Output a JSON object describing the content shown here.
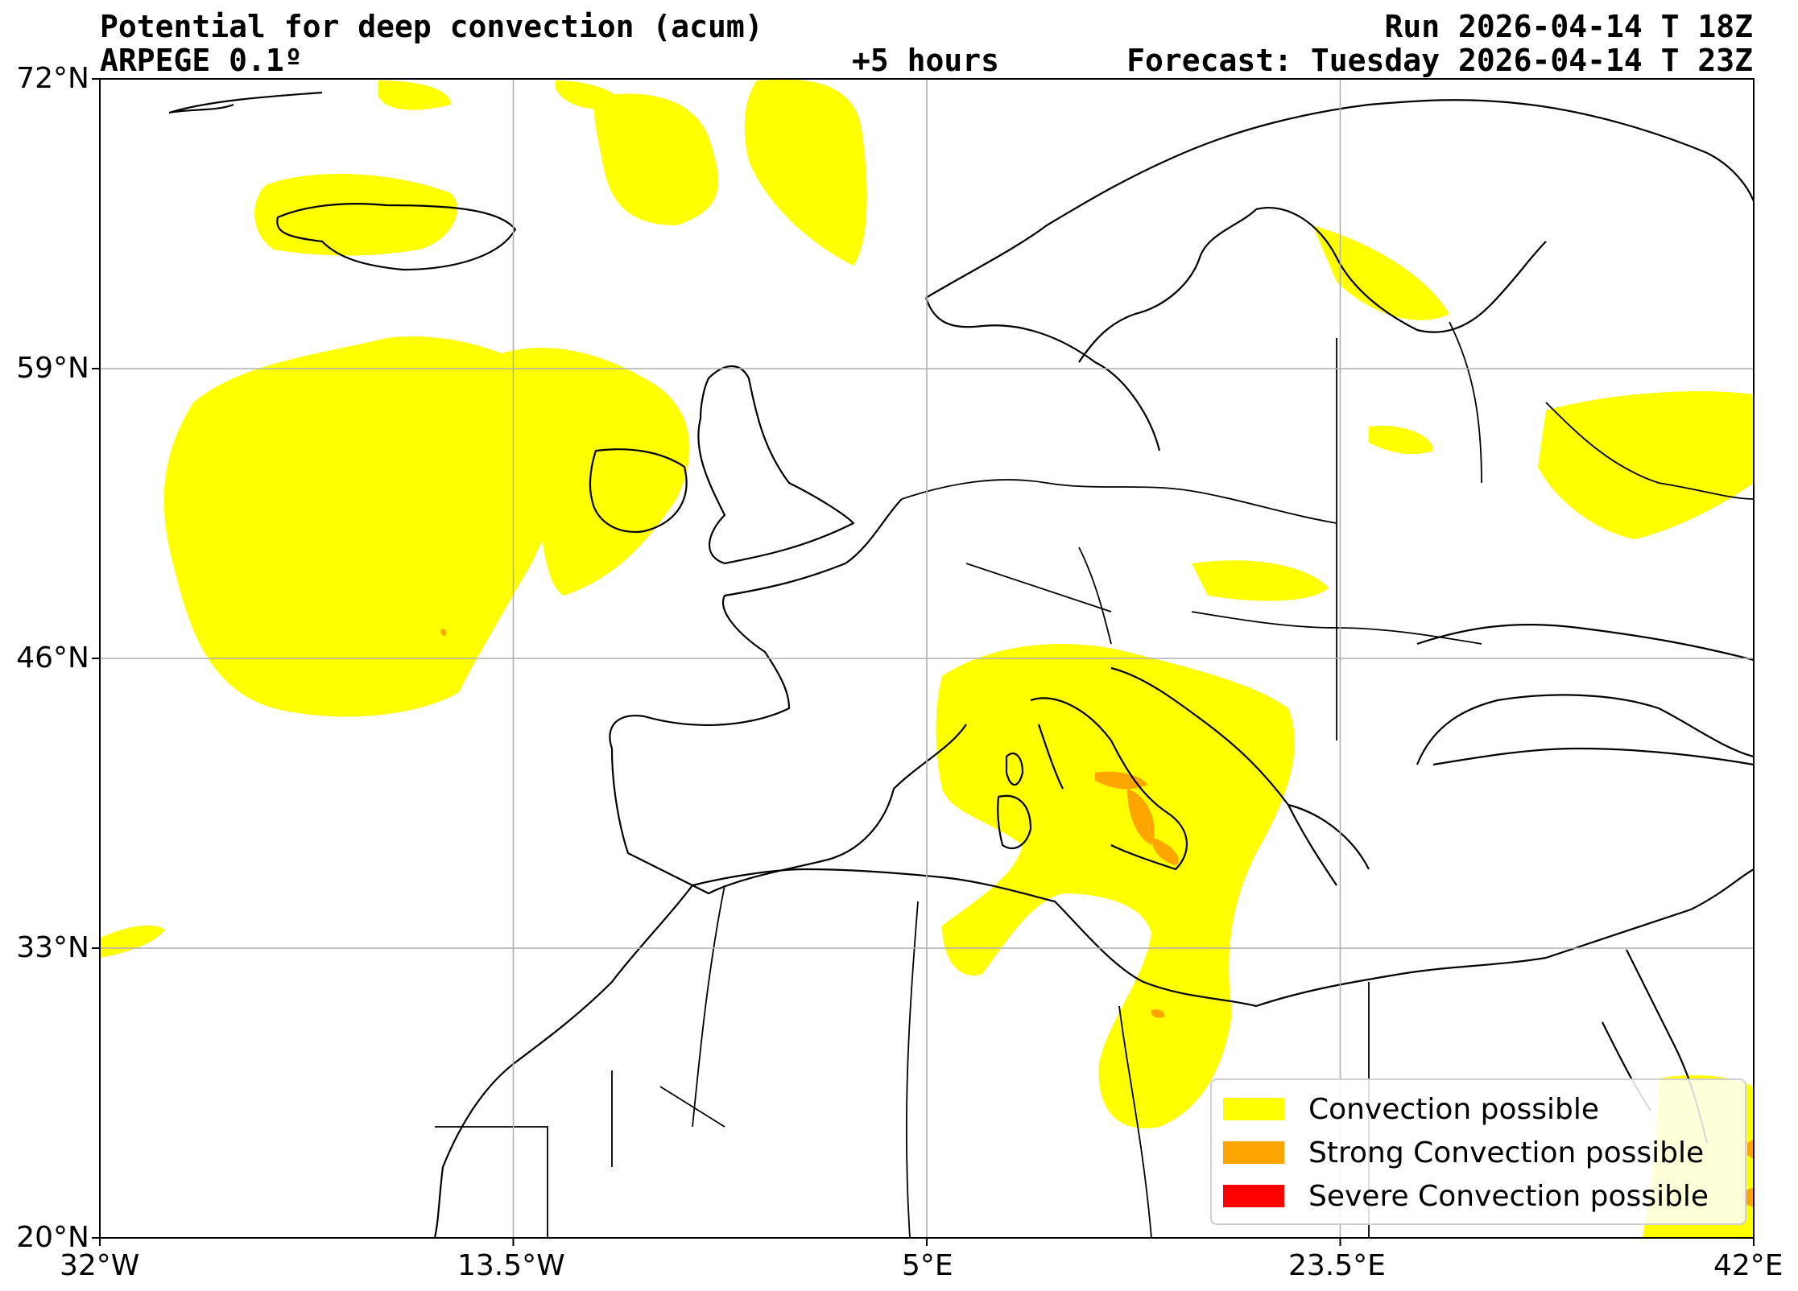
{
  "header": {
    "title": "Potential for deep convection (acum)",
    "model": "ARPEGE 0.1º",
    "lead_time": "+5 hours",
    "run": "Run 2026-04-14 T 18Z",
    "forecast": "Forecast: Tuesday 2026-04-14 T 23Z"
  },
  "axes": {
    "lat_ticks": [
      "72°N",
      "59°N",
      "46°N",
      "33°N",
      "20°N"
    ],
    "lon_ticks": [
      "32°W",
      "13.5°W",
      "5°E",
      "23.5°E",
      "42°E"
    ],
    "lon_range": [
      -32,
      42
    ],
    "lat_range": [
      20,
      72
    ],
    "grid": true
  },
  "legend": {
    "placement": "bottom-right",
    "items": [
      {
        "label": "Convection possible",
        "color": "#ffff00"
      },
      {
        "label": "Strong Convection possible",
        "color": "#ffa500"
      },
      {
        "label": "Severe Convection possible",
        "color": "#ff0000"
      }
    ]
  },
  "colors": {
    "convection": "#ffff00",
    "strong": "#ffa500",
    "severe": "#ff0000",
    "coastline": "#000000",
    "grid": "#b0b0b0"
  }
}
